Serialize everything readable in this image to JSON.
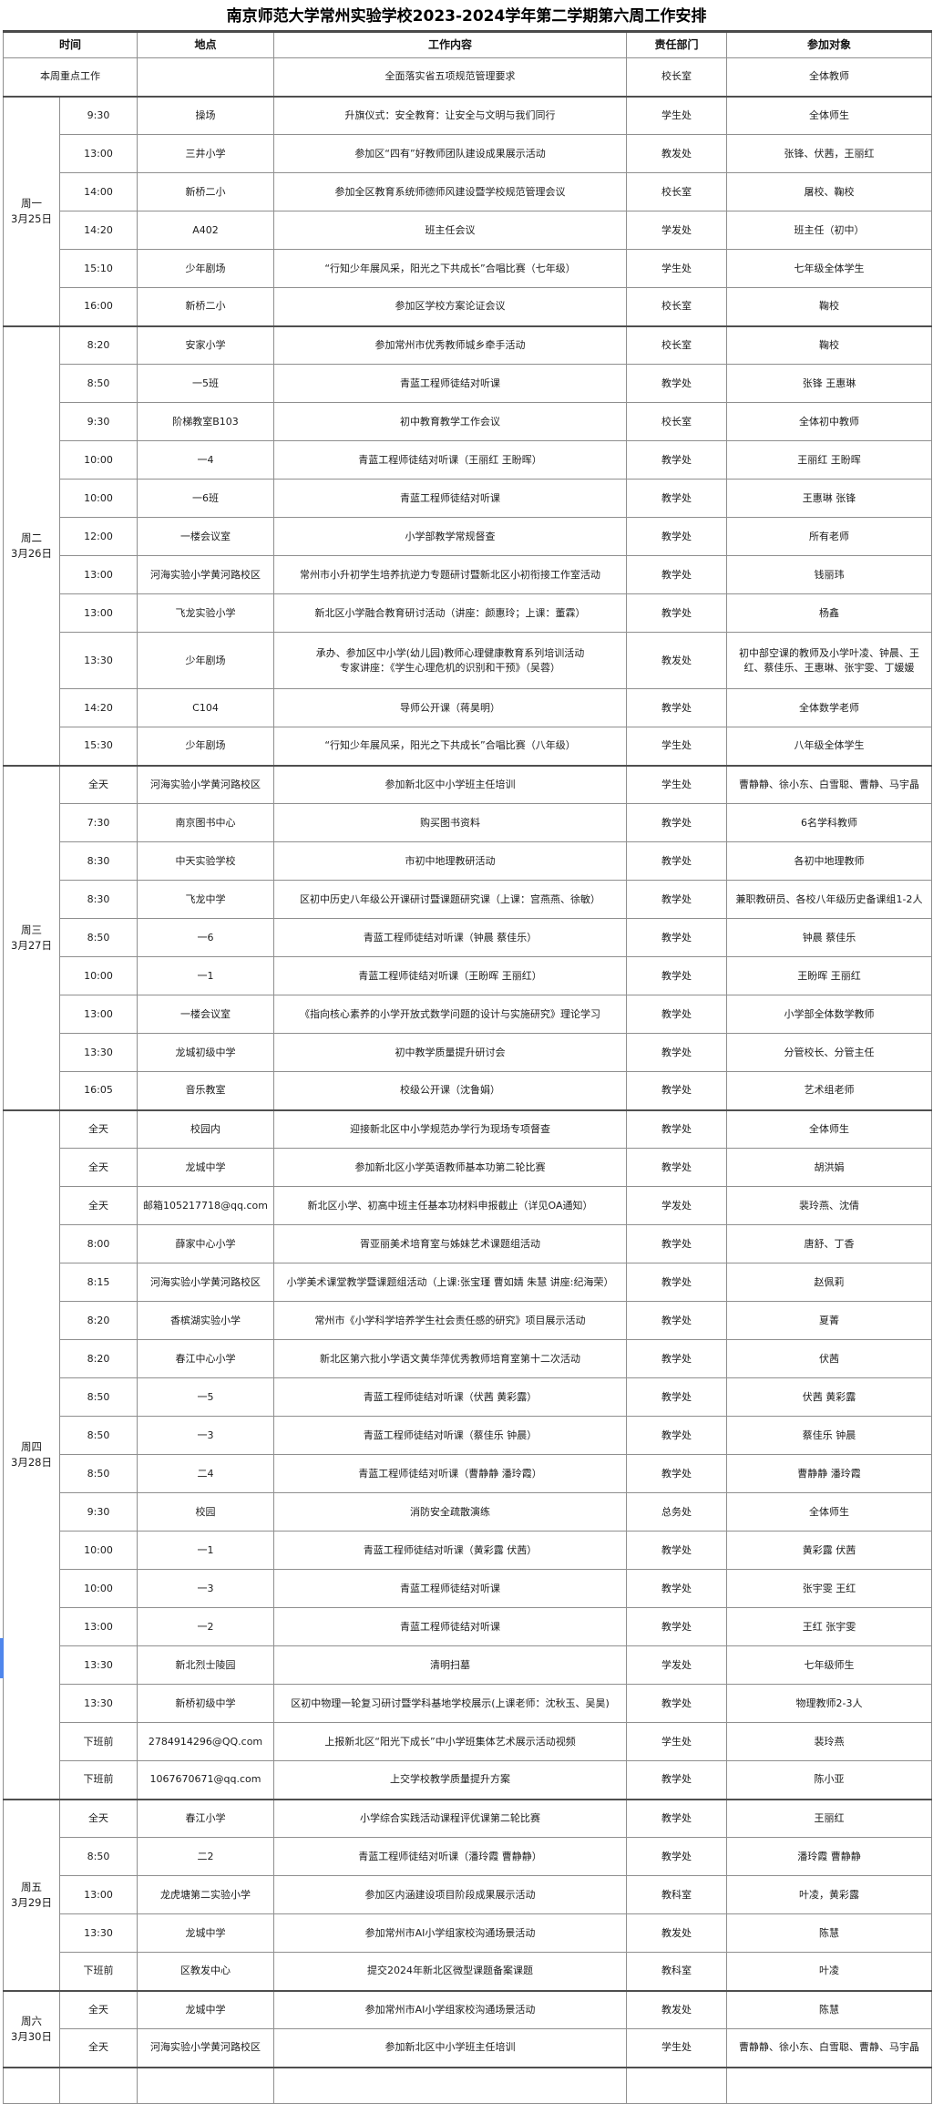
{
  "title": "南京师范大学常州实验学校2023-2024学年第二学期第六周工作安排",
  "columns": [
    "时间",
    "地点",
    "工作内容",
    "责任部门",
    "参加对象"
  ],
  "highlight_row": {
    "label": "本周重点工作",
    "location": "",
    "content": "全面落实省五项规范管理要求",
    "dept": "校长室",
    "participants": "全体教师"
  },
  "days": [
    {
      "day": "周一",
      "date": "3月25日",
      "rows": [
        {
          "time": "9:30",
          "location": "操场",
          "content": "升旗仪式：安全教育：让安全与文明与我们同行",
          "dept": "学生处",
          "participants": "全体师生"
        },
        {
          "time": "13:00",
          "location": "三井小学",
          "content": "参加区“四有”好教师团队建设成果展示活动",
          "dept": "教发处",
          "participants": "张锋、伏茜，王丽红"
        },
        {
          "time": "14:00",
          "location": "新桥二小",
          "content": "参加全区教育系统师德师风建设暨学校规范管理会议",
          "dept": "校长室",
          "participants": "屠校、鞠校"
        },
        {
          "time": "14:20",
          "location": "A402",
          "content": "班主任会议",
          "dept": "学发处",
          "participants": "班主任（初中）"
        },
        {
          "time": "15:10",
          "location": "少年剧场",
          "content": "“行知少年展风采，阳光之下共成长”合唱比赛（七年级）",
          "dept": "学生处",
          "participants": "七年级全体学生"
        },
        {
          "time": "16:00",
          "location": "新桥二小",
          "content": "参加区学校方案论证会议",
          "dept": "校长室",
          "participants": "鞠校"
        }
      ]
    },
    {
      "day": "周二",
      "date": "3月26日",
      "rows": [
        {
          "time": "8:20",
          "location": "安家小学",
          "content": "参加常州市优秀教师城乡牵手活动",
          "dept": "校长室",
          "participants": "鞠校"
        },
        {
          "time": "8:50",
          "location": "一5班",
          "content": "青蓝工程师徒结对听课",
          "dept": "教学处",
          "participants": "张锋 王惠琳"
        },
        {
          "time": "9:30",
          "location": "阶梯教室B103",
          "content": "初中教育教学工作会议",
          "dept": "校长室",
          "participants": "全体初中教师"
        },
        {
          "time": "10:00",
          "location": "一4",
          "content": "青蓝工程师徒结对听课（王丽红 王盼晖）",
          "dept": "教学处",
          "participants": "王丽红 王盼晖"
        },
        {
          "time": "10:00",
          "location": "一6班",
          "content": "青蓝工程师徒结对听课",
          "dept": "教学处",
          "participants": "王惠琳 张锋"
        },
        {
          "time": "12:00",
          "location": "一楼会议室",
          "content": "小学部教学常规督查",
          "dept": "教学处",
          "participants": "所有老师"
        },
        {
          "time": "13:00",
          "location": "河海实验小学黄河路校区",
          "content": "常州市小升初学生培养抗逆力专题研讨暨新北区小初衔接工作室活动",
          "dept": "教学处",
          "participants": "钱丽玮"
        },
        {
          "time": "13:00",
          "location": "飞龙实验小学",
          "content": "新北区小学融合教育研讨活动（讲座：颜惠玲；上课：董霖）",
          "dept": "教学处",
          "participants": "杨鑫"
        },
        {
          "time": "13:30",
          "location": "少年剧场",
          "content": "承办、参加区中小学(幼儿园)教师心理健康教育系列培训活动\n专家讲座：《学生心理危机的识别和干预》（吴蓉）",
          "dept": "教发处",
          "participants": "初中部空课的教师及小学叶凌、钟晨、王红、蔡佳乐、王惠琳、张宇雯、丁媛媛",
          "tall": true
        },
        {
          "time": "14:20",
          "location": "C104",
          "content": "导师公开课（蒋昊明）",
          "dept": "教学处",
          "participants": "全体数学老师"
        },
        {
          "time": "15:30",
          "location": "少年剧场",
          "content": "“行知少年展风采，阳光之下共成长”合唱比赛（八年级）",
          "dept": "学生处",
          "participants": "八年级全体学生"
        }
      ]
    },
    {
      "day": "周三",
      "date": "3月27日",
      "rows": [
        {
          "time": "全天",
          "location": "河海实验小学黄河路校区",
          "content": "参加新北区中小学班主任培训",
          "dept": "学生处",
          "participants": "曹静静、徐小东、白雪聪、曹静、马宇晶"
        },
        {
          "time": "7:30",
          "location": "南京图书中心",
          "content": "购买图书资料",
          "dept": "教学处",
          "participants": "6名学科教师"
        },
        {
          "time": "8:30",
          "location": "中天实验学校",
          "content": "市初中地理教研活动",
          "dept": "教学处",
          "participants": "各初中地理教师"
        },
        {
          "time": "8:30",
          "location": "飞龙中学",
          "content": "区初中历史八年级公开课研讨暨课题研究课（上课：宫燕燕、徐敏）",
          "dept": "教学处",
          "participants": "兼职教研员、各校八年级历史备课组1-2人"
        },
        {
          "time": "8:50",
          "location": "一6",
          "content": "青蓝工程师徒结对听课（钟晨 蔡佳乐）",
          "dept": "教学处",
          "participants": "钟晨 蔡佳乐"
        },
        {
          "time": "10:00",
          "location": "一1",
          "content": "青蓝工程师徒结对听课（王盼晖 王丽红）",
          "dept": "教学处",
          "participants": "王盼晖 王丽红"
        },
        {
          "time": "13:00",
          "location": "一楼会议室",
          "content": "《指向核心素养的小学开放式数学问题的设计与实施研究》理论学习",
          "dept": "教学处",
          "participants": "小学部全体数学教师"
        },
        {
          "time": "13:30",
          "location": "龙城初级中学",
          "content": "初中教学质量提升研讨会",
          "dept": "教学处",
          "participants": "分管校长、分管主任"
        },
        {
          "time": "16:05",
          "location": "音乐教室",
          "content": "校级公开课（沈鲁娟）",
          "dept": "教学处",
          "participants": "艺术组老师"
        }
      ]
    },
    {
      "day": "周四",
      "date": "3月28日",
      "rows": [
        {
          "time": "全天",
          "location": "校园内",
          "content": "迎接新北区中小学规范办学行为现场专项督查",
          "dept": "教学处",
          "participants": "全体师生"
        },
        {
          "time": "全天",
          "location": "龙城中学",
          "content": "参加新北区小学英语教师基本功第二轮比赛",
          "dept": "教学处",
          "participants": "胡洪娟"
        },
        {
          "time": "全天",
          "location": "邮箱105217718@qq.com",
          "content": "新北区小学、初高中班主任基本功材料申报截止（详见OA通知）",
          "dept": "学发处",
          "participants": "裴玲燕、沈倩"
        },
        {
          "time": "8:00",
          "location": "薛家中心小学",
          "content": "胥亚丽美术培育室与姊妹艺术课题组活动",
          "dept": "教学处",
          "participants": "唐舒、丁香"
        },
        {
          "time": "8:15",
          "location": "河海实验小学黄河路校区",
          "content": "小学美术课堂教学暨课题组活动（上课:张宝瑾 曹如婧 朱慧 讲座:纪海荣）",
          "dept": "教学处",
          "participants": "赵佩莉"
        },
        {
          "time": "8:20",
          "location": "香槟湖实验小学",
          "content": "常州市《小学科学培养学生社会责任感的研究》项目展示活动",
          "dept": "教学处",
          "participants": "夏菁"
        },
        {
          "time": "8:20",
          "location": "春江中心小学",
          "content": "新北区第六批小学语文黄华萍优秀教师培育室第十二次活动",
          "dept": "教学处",
          "participants": "伏茜"
        },
        {
          "time": "8:50",
          "location": "一5",
          "content": "青蓝工程师徒结对听课（伏茜 黄彩露）",
          "dept": "教学处",
          "participants": "伏茜 黄彩露"
        },
        {
          "time": "8:50",
          "location": "一3",
          "content": "青蓝工程师徒结对听课（蔡佳乐 钟晨）",
          "dept": "教学处",
          "participants": "蔡佳乐 钟晨"
        },
        {
          "time": "8:50",
          "location": "二4",
          "content": "青蓝工程师徒结对听课（曹静静 潘玲霞）",
          "dept": "教学处",
          "participants": "曹静静 潘玲霞"
        },
        {
          "time": "9:30",
          "location": "校园",
          "content": "消防安全疏散演练",
          "dept": "总务处",
          "participants": "全体师生"
        },
        {
          "time": "10:00",
          "location": "一1",
          "content": "青蓝工程师徒结对听课（黄彩露 伏茜）",
          "dept": "教学处",
          "participants": "黄彩露 伏茜"
        },
        {
          "time": "10:00",
          "location": "一3",
          "content": "青蓝工程师徒结对听课",
          "dept": "教学处",
          "participants": "张宇雯 王红"
        },
        {
          "time": "13:00",
          "location": "一2",
          "content": "青蓝工程师徒结对听课",
          "dept": "教学处",
          "participants": "王红 张宇雯"
        },
        {
          "time": "13:30",
          "location": "新北烈士陵园",
          "content": "清明扫墓",
          "dept": "学发处",
          "participants": "七年级师生"
        },
        {
          "time": "13:30",
          "location": "新桥初级中学",
          "content": "区初中物理一轮复习研讨暨学科基地学校展示(上课老师：沈秋玉、吴昊)",
          "dept": "教学处",
          "participants": "物理教师2-3人"
        },
        {
          "time": "下班前",
          "location": "2784914296@QQ.com",
          "content": "上报新北区“阳光下成长”中小学班集体艺术展示活动视频",
          "dept": "学生处",
          "participants": "裴玲燕"
        },
        {
          "time": "下班前",
          "location": "1067670671@qq.com",
          "content": "上交学校教学质量提升方案",
          "dept": "教学处",
          "participants": "陈小亚"
        }
      ]
    },
    {
      "day": "周五",
      "date": "3月29日",
      "rows": [
        {
          "time": "全天",
          "location": "春江小学",
          "content": "小学综合实践活动课程评优课第二轮比赛",
          "dept": "教学处",
          "participants": "王丽红"
        },
        {
          "time": "8:50",
          "location": "二2",
          "content": "青蓝工程师徒结对听课（潘玲霞 曹静静）",
          "dept": "教学处",
          "participants": "潘玲霞 曹静静"
        },
        {
          "time": "13:00",
          "location": "龙虎塘第二实验小学",
          "content": "参加区内涵建设项目阶段成果展示活动",
          "dept": "教科室",
          "participants": "叶凌，黄彩露"
        },
        {
          "time": "13:30",
          "location": "龙城中学",
          "content": "参加常州市AI小学组家校沟通场景活动",
          "dept": "教发处",
          "participants": "陈慧"
        },
        {
          "time": "下班前",
          "location": "区教发中心",
          "content": "提交2024年新北区微型课题备案课题",
          "dept": "教科室",
          "participants": "叶凌"
        }
      ]
    },
    {
      "day": "周六",
      "date": "3月30日",
      "rows": [
        {
          "time": "全天",
          "location": "龙城中学",
          "content": "参加常州市AI小学组家校沟通场景活动",
          "dept": "教发处",
          "participants": "陈慧"
        },
        {
          "time": "全天",
          "location": "河海实验小学黄河路校区",
          "content": "参加新北区中小学班主任培训",
          "dept": "学生处",
          "participants": "曹静静、徐小东、白雪聪、曹静、马宇晶"
        }
      ]
    }
  ],
  "colors": {
    "left_marker": "#4f86ec",
    "border_light": "#8f8f8f",
    "border_dark": "#4f4f4f",
    "text": "#1c1c1c"
  }
}
